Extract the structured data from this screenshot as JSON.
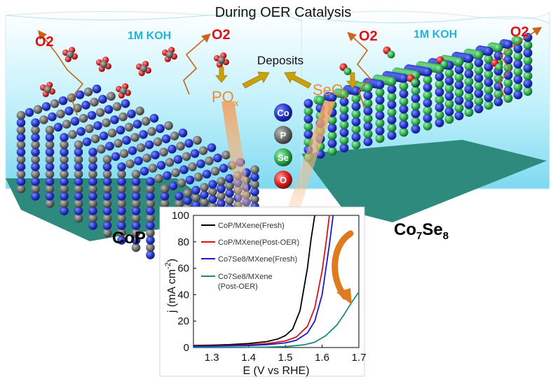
{
  "title": "During OER Catalysis",
  "electrolyte": {
    "left": "1M KOH",
    "right": "1M KOH"
  },
  "gas": {
    "left_o2_a": "O2",
    "left_o2_b": "O2",
    "right_o2_a": "O2",
    "right_o2_b": "O2"
  },
  "deposits_label": "Deposits",
  "species": {
    "left": "PO",
    "left_sub": "x",
    "right": "SeO",
    "right_sub": "x"
  },
  "materials": {
    "left": "CoP",
    "right_main": "Co",
    "right_sub1": "7",
    "right_mid": "Se",
    "right_sub2": "8"
  },
  "legend": [
    {
      "label": "Co",
      "color": "#2233bb"
    },
    {
      "label": "P",
      "color": "#666666"
    },
    {
      "label": "Se",
      "color": "#2aa04a"
    },
    {
      "label": "O",
      "color": "#dd2222"
    }
  ],
  "colors": {
    "co": "#2030c0",
    "p": "#6a6a6a",
    "se": "#30a850",
    "o": "#d42020",
    "water": "#9ee3f5",
    "accent": "#e07a1f",
    "arrow_gold": "#c9a10a"
  },
  "chart_data": {
    "type": "line",
    "xlabel": "E (V vs RHE)",
    "ylabel": "j (mA cm-2)",
    "ylabel_main": "j (mA cm",
    "ylabel_sup": "-2",
    "ylabel_close": ")",
    "xlim": [
      1.25,
      1.7
    ],
    "ylim": [
      0,
      100
    ],
    "xticks": [
      "1.3",
      "1.4",
      "1.5",
      "1.6",
      "1.7"
    ],
    "xtick_values": [
      1.3,
      1.4,
      1.5,
      1.6,
      1.7
    ],
    "yticks": [
      "0",
      "20",
      "40",
      "60",
      "80",
      "100"
    ],
    "ytick_values": [
      0,
      20,
      40,
      60,
      80,
      100
    ],
    "series": [
      {
        "name": "CoP/MXene(Fresh)",
        "color": "#000000",
        "x": [
          1.25,
          1.3,
          1.35,
          1.4,
          1.45,
          1.48,
          1.5,
          1.52,
          1.54,
          1.56,
          1.57,
          1.58
        ],
        "y": [
          1.5,
          1.8,
          2.2,
          3,
          4.5,
          6.5,
          9,
          14,
          28,
          60,
          82,
          100
        ]
      },
      {
        "name": "CoP/MXene(Post-OER)",
        "color": "#dd1111",
        "x": [
          1.25,
          1.3,
          1.35,
          1.4,
          1.45,
          1.5,
          1.53,
          1.56,
          1.58,
          1.6,
          1.61,
          1.62
        ],
        "y": [
          1.0,
          1.2,
          1.5,
          2,
          3,
          5,
          8,
          16,
          30,
          58,
          78,
          100
        ]
      },
      {
        "name": "Co7Se8/MXene(Fresh)",
        "color": "#1a1acc",
        "x": [
          1.25,
          1.3,
          1.35,
          1.4,
          1.45,
          1.5,
          1.53,
          1.56,
          1.58,
          1.6,
          1.62,
          1.63
        ],
        "y": [
          0.8,
          1.0,
          1.2,
          1.5,
          2.2,
          3.5,
          5.5,
          11,
          20,
          40,
          78,
          100
        ]
      },
      {
        "name": "Co7Se8/MXene\n(Post-OER)",
        "color": "#1a8a80",
        "x": [
          1.25,
          1.35,
          1.45,
          1.5,
          1.55,
          1.58,
          1.61,
          1.64,
          1.66,
          1.68,
          1.7
        ],
        "y": [
          0,
          0,
          0.3,
          0.7,
          2,
          4,
          9,
          17,
          25,
          34,
          42
        ]
      }
    ],
    "legend_labels": [
      {
        "main": "CoP/MXene(Fresh)"
      },
      {
        "main": "CoP/MXene(Post-OER)"
      },
      {
        "main": "Co7Se8/MXene(Fresh)"
      },
      {
        "main": "Co7Se8/MXene",
        "second": "(Post-OER)"
      }
    ]
  }
}
